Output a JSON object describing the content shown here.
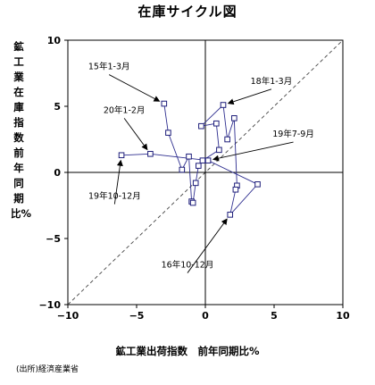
{
  "title": "在庫サイクル図",
  "source": "(出所)経済産業省",
  "colors": {
    "series_line": "#2e2e8f",
    "marker_stroke": "#1e1e7a",
    "axis": "#000000",
    "diagonal": "#444444"
  },
  "chart_data": {
    "type": "scatter",
    "title": "在庫サイクル図",
    "xlabel": "鉱工業出荷指数　前年同期比%",
    "ylabel": "鉱工業在庫指数　前年同期比%",
    "xlim": [
      -10,
      10
    ],
    "ylim": [
      -10,
      10
    ],
    "xticks": [
      -10,
      -5,
      0,
      5,
      10
    ],
    "yticks": [
      -10,
      -5,
      0,
      5,
      10
    ],
    "x_tick_labels": [
      "−10",
      "−5",
      "0",
      "5",
      "10"
    ],
    "y_tick_labels": [
      "−10",
      "−5",
      "0",
      "5",
      "10"
    ],
    "grid": false,
    "reference_lines": [
      "x = 0",
      "y = 0",
      "y = x (dashed)"
    ],
    "series": [
      {
        "points": [
          [
            -3.0,
            5.2
          ],
          [
            -2.7,
            3.0
          ],
          [
            -1.7,
            0.2
          ],
          [
            -1.2,
            1.2
          ],
          [
            -1.0,
            -2.2
          ],
          [
            -0.9,
            -2.3
          ],
          [
            -0.7,
            -0.8
          ],
          [
            -0.5,
            0.5
          ],
          [
            -0.2,
            0.9
          ],
          [
            1.0,
            1.7
          ],
          [
            0.8,
            3.7
          ],
          [
            -0.3,
            3.5
          ],
          [
            1.3,
            5.1
          ],
          [
            1.6,
            2.5
          ],
          [
            2.1,
            4.1
          ],
          [
            2.3,
            -1.0
          ],
          [
            2.2,
            -1.3
          ],
          [
            1.8,
            -3.2
          ],
          [
            3.8,
            -0.9
          ],
          [
            0.2,
            0.9
          ],
          [
            -4.0,
            1.4
          ],
          [
            -6.1,
            1.3
          ]
        ]
      }
    ],
    "annotations": [
      {
        "text": "15年1-3月",
        "x": -7.0,
        "y": 7.8,
        "arrow_to": [
          -3.0,
          5.2
        ]
      },
      {
        "text": "18年1-3月",
        "x": 4.8,
        "y": 6.7,
        "arrow_to": [
          1.3,
          5.1
        ]
      },
      {
        "text": "20年1-2月",
        "x": -5.9,
        "y": 4.5,
        "arrow_to": [
          -4.0,
          1.4
        ]
      },
      {
        "text": "19年7-9月",
        "x": 6.4,
        "y": 2.7,
        "arrow_to": [
          0.2,
          0.9
        ]
      },
      {
        "text": "19年10-12月",
        "x": -6.6,
        "y": -2.0,
        "arrow_to": [
          -6.1,
          1.3
        ]
      },
      {
        "text": "16年10-12月",
        "x": -1.3,
        "y": -7.2,
        "arrow_to": [
          1.8,
          -3.2
        ]
      }
    ]
  }
}
